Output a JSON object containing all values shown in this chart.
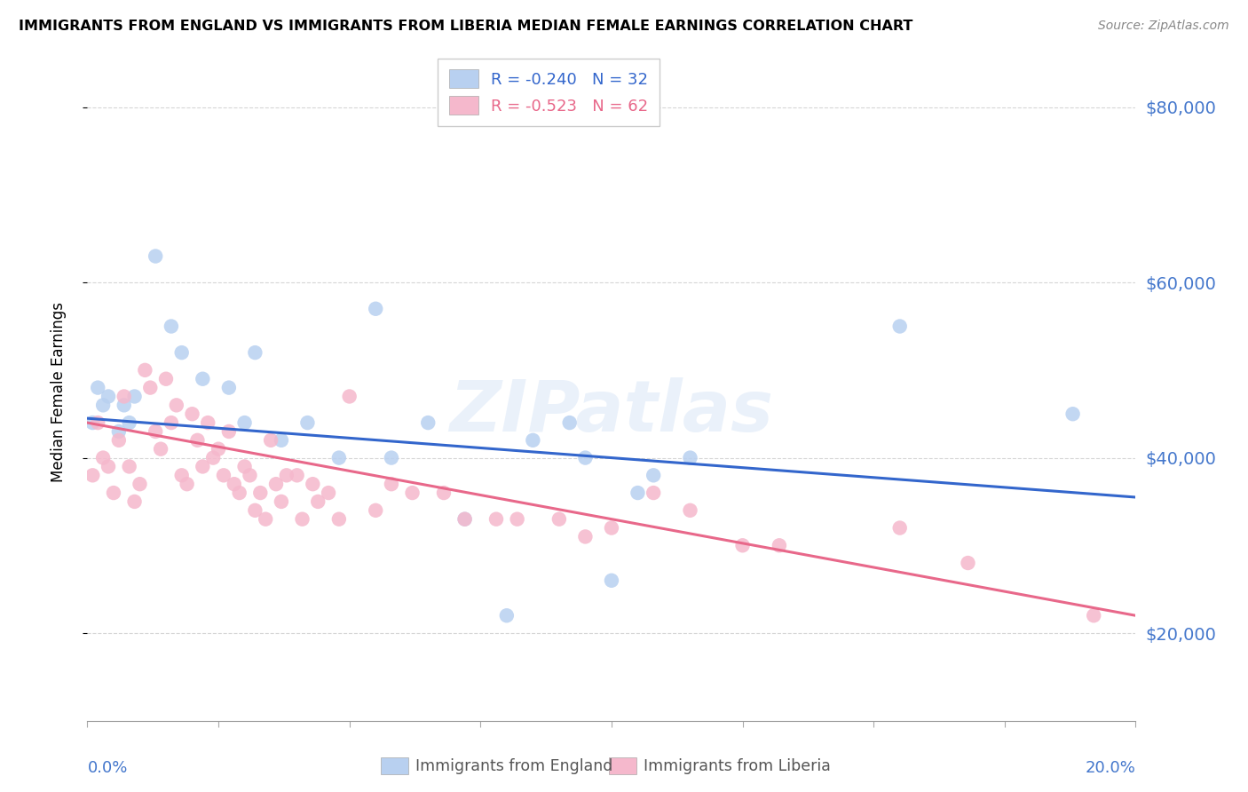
{
  "title": "IMMIGRANTS FROM ENGLAND VS IMMIGRANTS FROM LIBERIA MEDIAN FEMALE EARNINGS CORRELATION CHART",
  "source": "Source: ZipAtlas.com",
  "ylabel": "Median Female Earnings",
  "xmin": 0.0,
  "xmax": 0.2,
  "ymin": 10000,
  "ymax": 85000,
  "yticks": [
    20000,
    40000,
    60000,
    80000
  ],
  "ytick_labels": [
    "$20,000",
    "$40,000",
    "$60,000",
    "$80,000"
  ],
  "xticks": [
    0.0,
    0.025,
    0.05,
    0.075,
    0.1,
    0.125,
    0.15,
    0.175,
    0.2
  ],
  "legend_R_eng": "-0.240",
  "legend_N_eng": "32",
  "legend_R_lib": "-0.523",
  "legend_N_lib": "62",
  "color_england": "#b8d0f0",
  "color_liberia": "#f5b8cc",
  "color_england_line": "#3366CC",
  "color_liberia_line": "#E8688A",
  "color_axis_labels": "#4477CC",
  "watermark": "ZIPatlas",
  "eng_line_x0": 0.0,
  "eng_line_y0": 44500,
  "eng_line_x1": 0.2,
  "eng_line_y1": 35500,
  "lib_line_x0": 0.0,
  "lib_line_y0": 44000,
  "lib_line_x1": 0.2,
  "lib_line_y1": 22000,
  "england_x": [
    0.001,
    0.002,
    0.003,
    0.004,
    0.006,
    0.007,
    0.008,
    0.009,
    0.013,
    0.016,
    0.018,
    0.022,
    0.027,
    0.03,
    0.032,
    0.037,
    0.042,
    0.048,
    0.055,
    0.058,
    0.065,
    0.072,
    0.08,
    0.085,
    0.092,
    0.095,
    0.1,
    0.105,
    0.108,
    0.115,
    0.155,
    0.188
  ],
  "england_y": [
    44000,
    48000,
    46000,
    47000,
    43000,
    46000,
    44000,
    47000,
    63000,
    55000,
    52000,
    49000,
    48000,
    44000,
    52000,
    42000,
    44000,
    40000,
    57000,
    40000,
    44000,
    33000,
    22000,
    42000,
    44000,
    40000,
    26000,
    36000,
    38000,
    40000,
    55000,
    45000
  ],
  "liberia_x": [
    0.001,
    0.002,
    0.003,
    0.004,
    0.005,
    0.006,
    0.007,
    0.008,
    0.009,
    0.01,
    0.011,
    0.012,
    0.013,
    0.014,
    0.015,
    0.016,
    0.017,
    0.018,
    0.019,
    0.02,
    0.021,
    0.022,
    0.023,
    0.024,
    0.025,
    0.026,
    0.027,
    0.028,
    0.029,
    0.03,
    0.031,
    0.032,
    0.033,
    0.034,
    0.035,
    0.036,
    0.037,
    0.038,
    0.04,
    0.041,
    0.043,
    0.044,
    0.046,
    0.048,
    0.05,
    0.055,
    0.058,
    0.062,
    0.068,
    0.072,
    0.078,
    0.082,
    0.09,
    0.095,
    0.1,
    0.108,
    0.115,
    0.125,
    0.132,
    0.155,
    0.168,
    0.192
  ],
  "liberia_y": [
    38000,
    44000,
    40000,
    39000,
    36000,
    42000,
    47000,
    39000,
    35000,
    37000,
    50000,
    48000,
    43000,
    41000,
    49000,
    44000,
    46000,
    38000,
    37000,
    45000,
    42000,
    39000,
    44000,
    40000,
    41000,
    38000,
    43000,
    37000,
    36000,
    39000,
    38000,
    34000,
    36000,
    33000,
    42000,
    37000,
    35000,
    38000,
    38000,
    33000,
    37000,
    35000,
    36000,
    33000,
    47000,
    34000,
    37000,
    36000,
    36000,
    33000,
    33000,
    33000,
    33000,
    31000,
    32000,
    36000,
    34000,
    30000,
    30000,
    32000,
    28000,
    22000
  ]
}
